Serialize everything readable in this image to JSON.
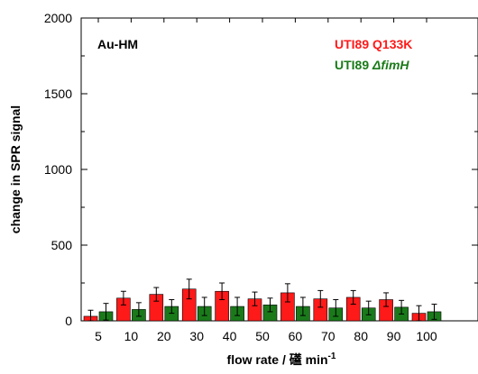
{
  "chart_data": {
    "type": "bar",
    "title": "",
    "xlabel": "flow rate / 礚 min",
    "xlabel_superscript": "-1",
    "ylabel": "change in SPR signal",
    "ylim": [
      0,
      2000
    ],
    "yticks": [
      0,
      500,
      1000,
      1500,
      2000
    ],
    "categories": [
      "5",
      "10",
      "20",
      "30",
      "40",
      "50",
      "60",
      "70",
      "80",
      "90",
      "100"
    ],
    "series": [
      {
        "name": "UTI89 Q133K",
        "color": "#ff1a1a",
        "values": [
          30,
          150,
          175,
          210,
          195,
          145,
          185,
          145,
          155,
          140,
          50
        ],
        "errors": [
          40,
          45,
          45,
          65,
          55,
          45,
          60,
          55,
          45,
          45,
          50
        ]
      },
      {
        "name": "UTI89 ΔfimH",
        "color": "#1a7a1a",
        "values": [
          60,
          75,
          95,
          95,
          95,
          105,
          95,
          85,
          85,
          90,
          60
        ],
        "errors": [
          55,
          45,
          45,
          60,
          60,
          45,
          60,
          55,
          45,
          45,
          50
        ]
      }
    ],
    "legend_position": "top-right",
    "annotations": {
      "label": "Au-HM"
    },
    "legend_texts": {
      "series1_prefix": "UTI89 ",
      "series1_rest": "Q133K",
      "series2_prefix": "UTI89 ",
      "series2_delta": "Δ",
      "series2_rest": "fimH"
    },
    "grid": false
  }
}
